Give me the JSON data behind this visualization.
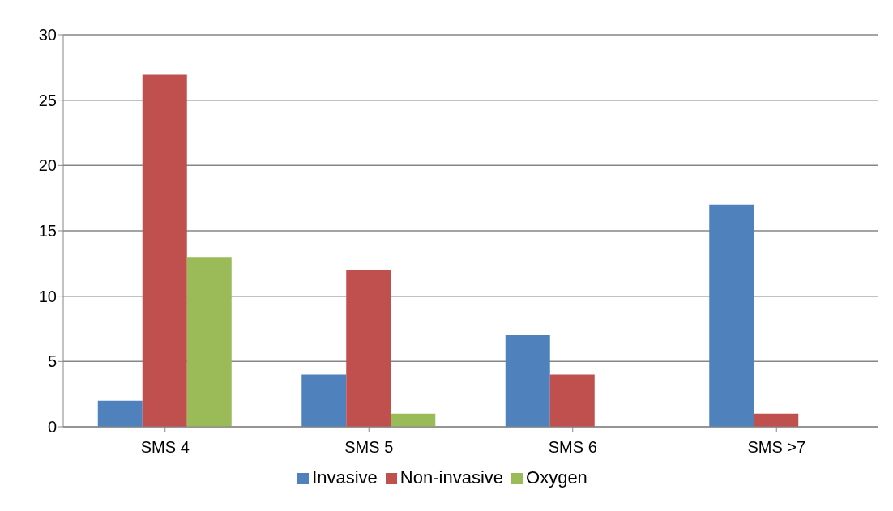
{
  "chart_data": {
    "type": "bar",
    "categories": [
      "SMS 4",
      "SMS 5",
      "SMS 6",
      "SMS >7"
    ],
    "series": [
      {
        "name": "Invasive",
        "color": "#4f81bd",
        "values": [
          2,
          4,
          7,
          17
        ]
      },
      {
        "name": "Non-invasive",
        "color": "#c0504d",
        "values": [
          27,
          12,
          4,
          1
        ]
      },
      {
        "name": "Oxygen",
        "color": "#9bbb59",
        "values": [
          13,
          1,
          0,
          0
        ]
      }
    ],
    "ylim": [
      0,
      30
    ],
    "yticks": [
      0,
      5,
      10,
      15,
      20,
      25,
      30
    ],
    "grid": "y",
    "legend": "bottom"
  }
}
